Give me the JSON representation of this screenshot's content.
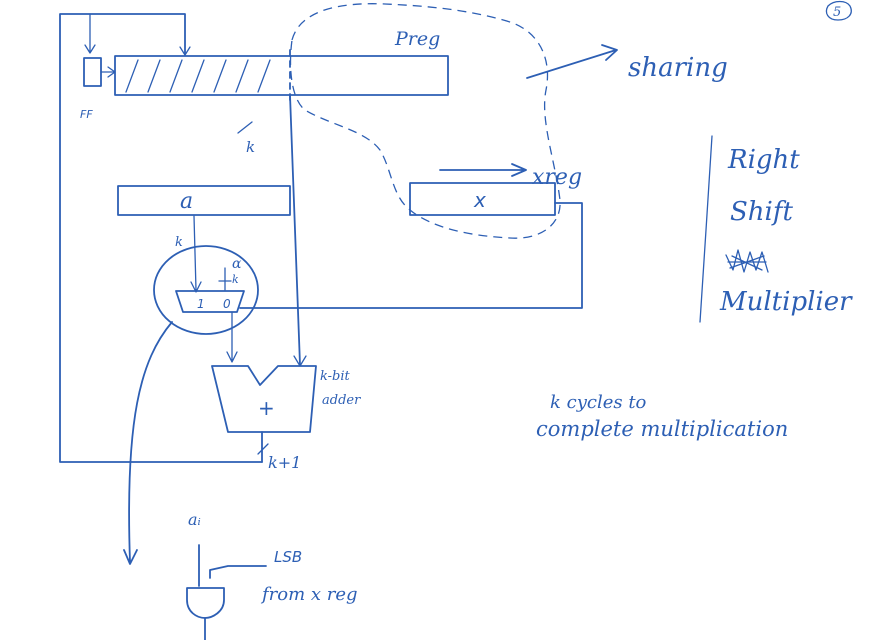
{
  "page_number": "5",
  "labels": {
    "preg": "Preg",
    "ff": "FF",
    "k_top": "k",
    "a_reg": "a",
    "x_reg_box": "x",
    "xreg_label": "xreg",
    "sharing": "sharing",
    "k_in": "k",
    "alpha": "ɑ",
    "k_mux_in": "k",
    "mux_one": "1",
    "mux_zero": "0",
    "plus": "+",
    "adder_line1": "k-bit",
    "adder_line2": "adder",
    "k_plus_1": "k+1",
    "ai": "aᵢ",
    "lsb_line1": "LSB",
    "lsb_line2": "from x reg"
  },
  "side_note": {
    "line1": "Right",
    "line2": "Shift",
    "line3": "Multiplier"
  },
  "note": {
    "line1": "k cycles to",
    "line2": "complete multiplication"
  },
  "ink_color": "#2d5fb4"
}
